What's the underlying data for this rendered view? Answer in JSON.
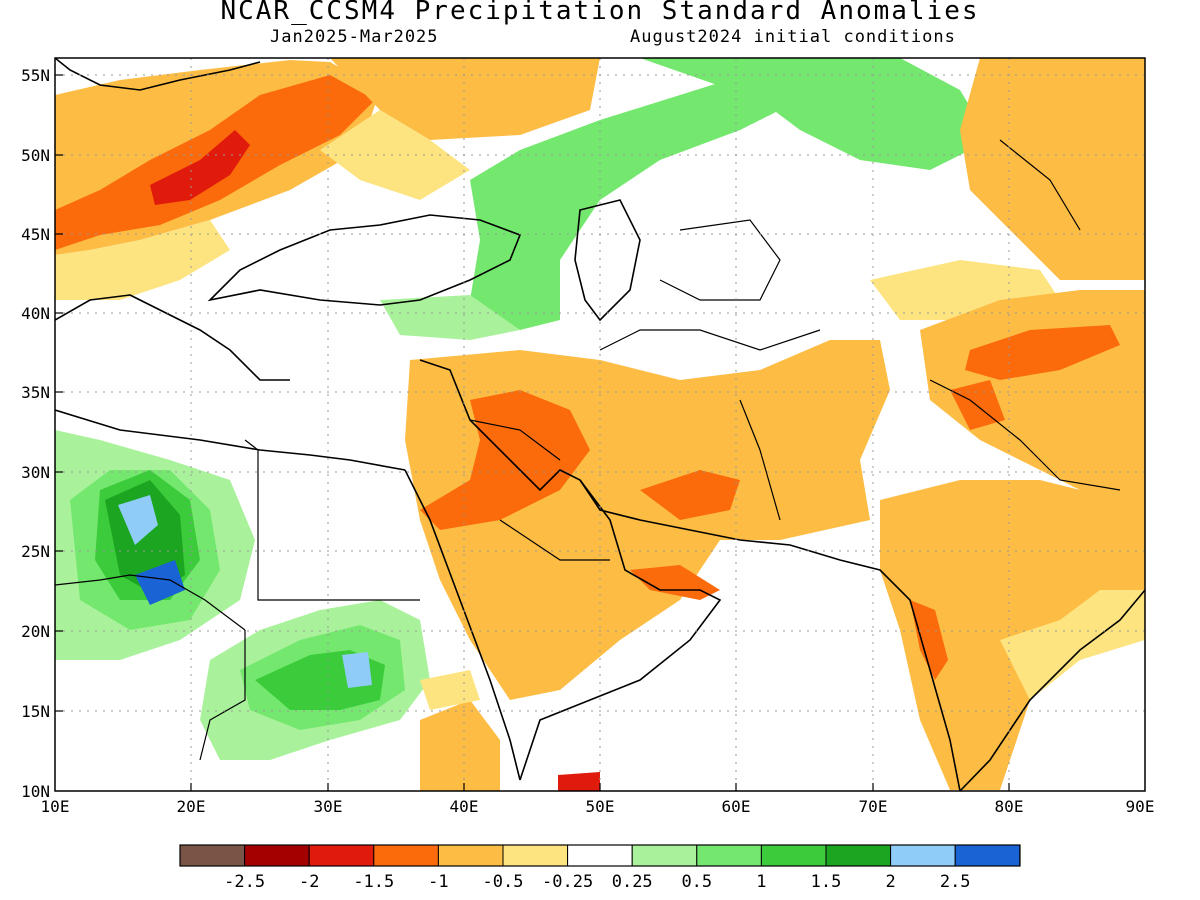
{
  "header": {
    "title": "NCAR_CCSM4 Precipitation Standard Anomalies",
    "period": "Jan2025-Mar2025",
    "init": "August2024 initial conditions"
  },
  "axes": {
    "lat_labels": [
      "55N",
      "50N",
      "45N",
      "40N",
      "35N",
      "30N",
      "25N",
      "20N",
      "15N",
      "10N"
    ],
    "lon_labels": [
      "10E",
      "20E",
      "30E",
      "40E",
      "50E",
      "60E",
      "70E",
      "80E",
      "90E"
    ]
  },
  "colorbar": {
    "colors": [
      "#7a5545",
      "#a50000",
      "#e11b0b",
      "#fb6a0b",
      "#fdbc44",
      "#fde481",
      "#ffffff",
      "#a9f29b",
      "#74e86e",
      "#3bcb3b",
      "#1ca520",
      "#8fccf7",
      "#1a63d5"
    ],
    "labels": [
      "-2.5",
      "-2",
      "-1.5",
      "-1",
      "-0.5",
      "-0.25",
      "0.25",
      "0.5",
      "1",
      "1.5",
      "2",
      "2.5"
    ]
  },
  "palette": {
    "dry1": "#fde481",
    "dry2": "#fdbc44",
    "dry3": "#fb6a0b",
    "dry4": "#e11b0b",
    "dry5": "#a50000",
    "wet1": "#a9f29b",
    "wet2": "#74e86e",
    "wet3": "#3bcb3b",
    "wet4": "#1ca520",
    "wet5": "#8fccf7",
    "wet6": "#1a63d5"
  }
}
